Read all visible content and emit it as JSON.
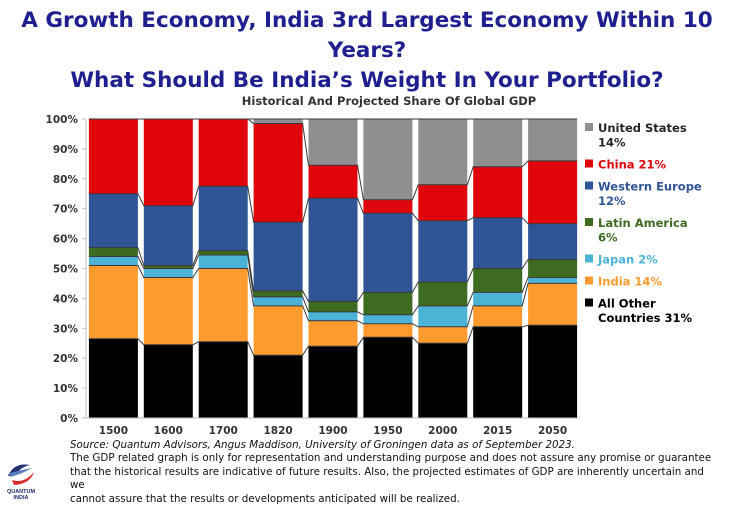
{
  "headline": {
    "line1": "A Growth Economy, India 3rd Largest Economy Within 10 Years?",
    "line2": "What Should Be India’s Weight In Your Portfolio?"
  },
  "chart_data": {
    "type": "bar",
    "stacked": true,
    "title": "Historical And Projected Share Of Global GDP",
    "categories": [
      "1500",
      "1600",
      "1700",
      "1820",
      "1900",
      "1950",
      "2000",
      "2015",
      "2050"
    ],
    "ylim": [
      0,
      100
    ],
    "yticks": [
      "0%",
      "10%",
      "20%",
      "30%",
      "40%",
      "50%",
      "60%",
      "70%",
      "80%",
      "90%",
      "100%"
    ],
    "grid": false,
    "legend_position": "right",
    "series": [
      {
        "key": "other",
        "color": "#000000",
        "values": [
          26.5,
          24.5,
          25.5,
          21,
          24,
          27,
          25,
          30.5,
          31
        ]
      },
      {
        "key": "india",
        "color": "#ff9a2e",
        "values": [
          24.5,
          22.5,
          24.5,
          16.5,
          8.5,
          4.5,
          5.5,
          7,
          14
        ]
      },
      {
        "key": "japan",
        "color": "#4db3d6",
        "values": [
          3,
          3,
          4.5,
          3,
          3,
          3,
          7,
          4.5,
          2
        ]
      },
      {
        "key": "latam",
        "color": "#3d6b1f",
        "values": [
          3,
          1,
          1.5,
          2,
          3.5,
          7.5,
          8,
          8,
          6
        ]
      },
      {
        "key": "weurope",
        "color": "#2f5597",
        "values": [
          18,
          20,
          21.5,
          23,
          34.5,
          26.5,
          20.5,
          17,
          12
        ]
      },
      {
        "key": "china",
        "color": "#e0040b",
        "values": [
          25,
          29,
          22.5,
          33,
          11,
          4.5,
          12,
          17,
          21
        ]
      },
      {
        "key": "us",
        "color": "#8f8f8f",
        "values": [
          0,
          0,
          0,
          1.5,
          15.5,
          27,
          22,
          16,
          14
        ]
      }
    ],
    "legend": [
      {
        "key": "us",
        "color": "#8f8f8f",
        "text_color": "#262626",
        "lines": [
          "United States",
          "14%"
        ]
      },
      {
        "key": "china",
        "color": "#e0040b",
        "text_color": "#e0040b",
        "lines": [
          "China 21%"
        ]
      },
      {
        "key": "weurope",
        "color": "#2f5597",
        "text_color": "#2f5597",
        "lines": [
          "Western Europe",
          "12%"
        ]
      },
      {
        "key": "latam",
        "color": "#3d6b1f",
        "text_color": "#3d6b1f",
        "lines": [
          "Latin America",
          "6%"
        ]
      },
      {
        "key": "japan",
        "color": "#4db3d6",
        "text_color": "#4db3d6",
        "lines": [
          "Japan 2%"
        ]
      },
      {
        "key": "india",
        "color": "#ff9a2e",
        "text_color": "#ff9a2e",
        "lines": [
          "India 14%"
        ]
      },
      {
        "key": "other",
        "color": "#000000",
        "text_color": "#000000",
        "lines": [
          "All Other",
          "Countries 31%"
        ]
      }
    ]
  },
  "footer": {
    "source": "Source: Quantum Advisors, Angus Maddison, University of Groningen data as of September 2023.",
    "disclaimer_1": "The GDP related graph is only for representation and understanding purpose and does not assure any promise or guarantee",
    "disclaimer_2": "that the historical results are indicative of future results. Also, the projected estimates of GDP are inherently uncertain and we",
    "disclaimer_3": "cannot assure that the results or developments anticipated will be realized."
  },
  "logo": {
    "text": "QUANTUM INDIA",
    "colors": [
      "#1f2f6f",
      "#d92b2b"
    ]
  }
}
